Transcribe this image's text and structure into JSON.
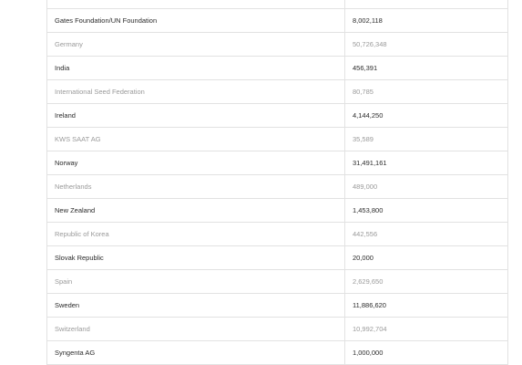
{
  "table": {
    "rows": [
      {
        "name": "",
        "amount": "",
        "style": "light"
      },
      {
        "name": "Gates Foundation/UN Foundation",
        "amount": "8,002,118",
        "style": "bold"
      },
      {
        "name": "Germany",
        "amount": "50,726,348",
        "style": "light"
      },
      {
        "name": "India",
        "amount": "456,391",
        "style": "bold"
      },
      {
        "name": "International Seed Federation",
        "amount": "80,785",
        "style": "light"
      },
      {
        "name": "Ireland",
        "amount": "4,144,250",
        "style": "bold"
      },
      {
        "name": "KWS SAAT AG",
        "amount": "35,589",
        "style": "light"
      },
      {
        "name": "Norway",
        "amount": "31,491,161",
        "style": "bold"
      },
      {
        "name": "Netherlands",
        "amount": "489,000",
        "style": "light"
      },
      {
        "name": "New Zealand",
        "amount": "1,453,800",
        "style": "bold"
      },
      {
        "name": "Republic of Korea",
        "amount": "442,556",
        "style": "light"
      },
      {
        "name": "Slovak Republic",
        "amount": "20,000",
        "style": "bold"
      },
      {
        "name": "Spain",
        "amount": "2,629,650",
        "style": "light"
      },
      {
        "name": "Sweden",
        "amount": "11,886,620",
        "style": "bold"
      },
      {
        "name": "Switzerland",
        "amount": "10,992,704",
        "style": "light"
      },
      {
        "name": "Syngenta AG",
        "amount": "1,000,000",
        "style": "bold"
      }
    ]
  }
}
